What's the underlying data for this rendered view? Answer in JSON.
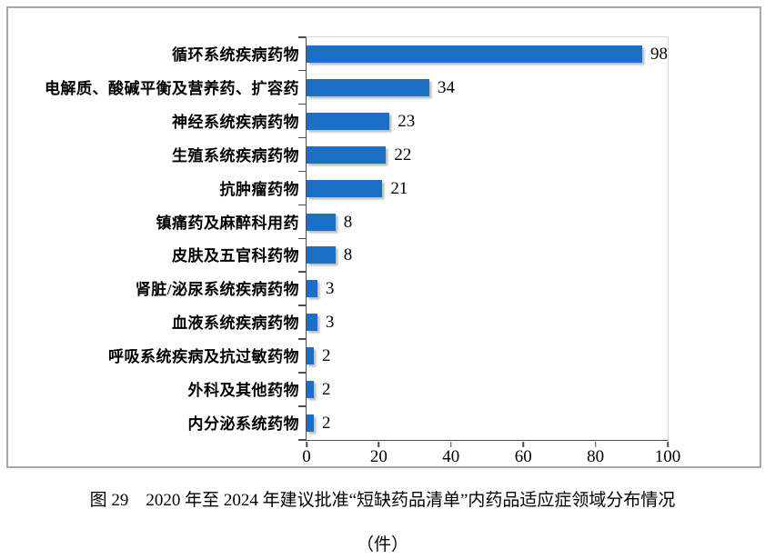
{
  "figure": {
    "caption_line1": "图 29　2020 年至 2024 年建议批准“短缺药品清单”内药品适应症领域分布情况",
    "caption_line2": "（件）"
  },
  "colors": {
    "bar": "#1B6FC5",
    "axis": "#4D4D4D",
    "plot_border": "#D9D9D9",
    "frame_border": "#A6A6A6"
  },
  "chart_data": {
    "type": "bar",
    "orientation": "horizontal",
    "title": "",
    "xlabel": "",
    "ylabel": "",
    "xlim": [
      0,
      100
    ],
    "x_ticks": [
      0,
      20,
      40,
      60,
      80,
      100
    ],
    "grid": false,
    "legend": false,
    "value_labels_shown": true,
    "categories": [
      "循环系统疾病药物",
      "电解质、酸碱平衡及营养药、扩容药",
      "神经系统疾病药物",
      "生殖系统疾病药物",
      "抗肿瘤药物",
      "镇痛药及麻醉科用药",
      "皮肤及五官科药物",
      "肾脏/泌尿系统疾病药物",
      "血液系统疾病药物",
      "呼吸系统疾病及抗过敏药物",
      "外科及其他药物",
      "内分泌系统药物"
    ],
    "values": [
      98,
      34,
      23,
      22,
      21,
      8,
      8,
      3,
      3,
      2,
      2,
      2
    ]
  }
}
